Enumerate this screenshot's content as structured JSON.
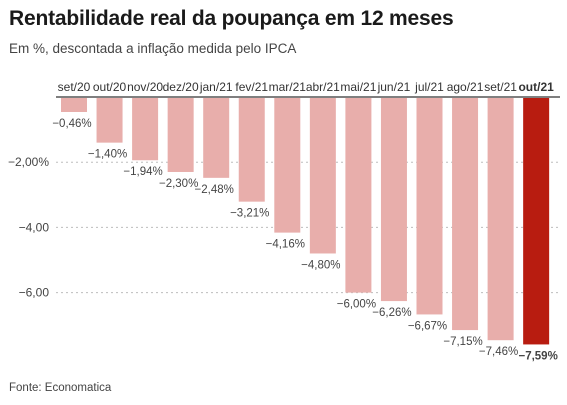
{
  "title": "Rentabilidade real da poupança em 12 meses",
  "subtitle": "Em %, descontada a inflação medida pelo IPCA",
  "source": "Fonte: Economatica",
  "colors": {
    "bar": "#e8aeab",
    "highlight": "#b81c10",
    "grid": "#bdbdbd",
    "axis": "#333333",
    "text": "#444444"
  },
  "chart_data": {
    "type": "bar",
    "orientation": "vertical-downward",
    "categories": [
      "set/20",
      "out/20",
      "nov/20",
      "dez/20",
      "jan/21",
      "fev/21",
      "mar/21",
      "abr/21",
      "mai/21",
      "jun/21",
      "jul/21",
      "ago/21",
      "set/21",
      "out/21"
    ],
    "values": [
      -0.46,
      -1.4,
      -1.94,
      -2.3,
      -2.48,
      -3.21,
      -4.16,
      -4.8,
      -6.0,
      -6.26,
      -6.67,
      -7.15,
      -7.46,
      -7.59
    ],
    "value_labels": [
      "−0,46%",
      "−1,40%",
      "−1,94%",
      "−2,30%",
      "−2,48%",
      "−3,21%",
      "−4,16%",
      "−4,80%",
      "−6,00%",
      "−6,26%",
      "−6,67%",
      "−7,15%",
      "−7,46%",
      "−7,59%"
    ],
    "highlight_index": 13,
    "ylim": [
      -8,
      0
    ],
    "yticks": [
      -2,
      -4,
      -6
    ],
    "ytick_labels": [
      "−2,00%",
      "−4,00",
      "−6,00"
    ],
    "grid": true,
    "legend": "none"
  }
}
